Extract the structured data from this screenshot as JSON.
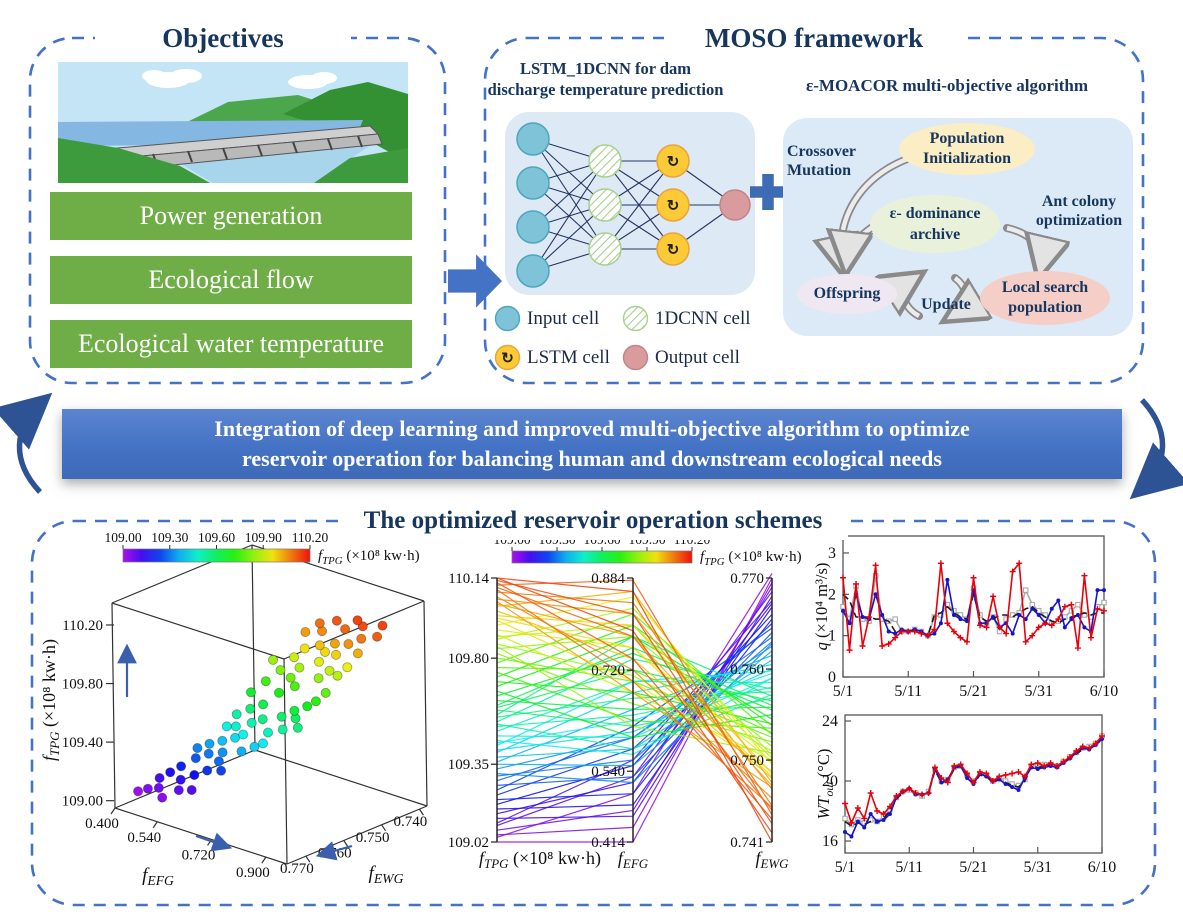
{
  "objectives_box": {
    "title": "Objectives",
    "items": [
      "Power generation",
      "Ecological flow",
      "Ecological water temperature"
    ]
  },
  "moso_box": {
    "title": "MOSO framework",
    "nn_header_line1": "LSTM_1DCNN for dam",
    "nn_header_line2": "discharge temperature prediction",
    "algo_header": "ε-MOACOR multi-objective algorithm",
    "nn_structure": [
      4,
      3,
      3,
      1
    ],
    "lstm_glyph": "↻",
    "legend": [
      "Input cell",
      "1DCNN cell",
      "LSTM cell",
      "Output cell"
    ],
    "flow": {
      "crossover_line1": "Crossover",
      "crossover_line2": "Mutation",
      "pop_line1": "Population",
      "pop_line2": "Initialization",
      "archive_line1": "ε- dominance",
      "archive_line2": "archive",
      "ant_line1": "Ant colony",
      "ant_line2": "optimization",
      "offspring": "Offspring",
      "update": "Update",
      "local_line1": "Local search",
      "local_line2": "population"
    }
  },
  "banner": {
    "line1": "Integration of deep learning and improved multi-objective algorithm to optimize",
    "line2": "reservoir operation for balancing human and downstream ecological needs"
  },
  "schemes_box": {
    "title": "The optimized reservoir operation schemes"
  },
  "colors": {
    "accent_blue": "#4472C4",
    "navy": "#17365D",
    "green_bar": "#6FAD47",
    "input_cell": "#7EC3D8",
    "cnn_hatch": "#A8D08D",
    "lstm_cell": "#FCC937",
    "output_cell": "#D99B9E",
    "red_series": "#E8000B",
    "blue_series": "#1414CC",
    "black_series": "#1a1a1a",
    "gray_series": "#A9A9A9"
  },
  "pareto_solutions": [
    [
      109.02,
      0.414,
      0.77
    ],
    [
      109.05,
      0.44,
      0.7695
    ],
    [
      109.07,
      0.47,
      0.769
    ],
    [
      109.04,
      0.5,
      0.7705
    ],
    [
      109.09,
      0.53,
      0.7685
    ],
    [
      109.12,
      0.46,
      0.768
    ],
    [
      109.1,
      0.56,
      0.7675
    ],
    [
      109.14,
      0.52,
      0.7672
    ],
    [
      109.16,
      0.48,
      0.7668
    ],
    [
      109.18,
      0.55,
      0.766
    ],
    [
      109.2,
      0.5,
      0.7655
    ],
    [
      109.22,
      0.58,
      0.765
    ],
    [
      109.24,
      0.62,
      0.7645
    ],
    [
      109.26,
      0.53,
      0.764
    ],
    [
      109.28,
      0.6,
      0.7635
    ],
    [
      109.3,
      0.56,
      0.763
    ],
    [
      109.31,
      0.52,
      0.7628
    ],
    [
      109.33,
      0.6,
      0.7625
    ],
    [
      109.35,
      0.55,
      0.762
    ],
    [
      109.36,
      0.65,
      0.7615
    ],
    [
      109.38,
      0.58,
      0.761
    ],
    [
      109.4,
      0.68,
      0.7605
    ],
    [
      109.41,
      0.61,
      0.76
    ],
    [
      109.43,
      0.7,
      0.7598
    ],
    [
      109.44,
      0.63,
      0.7595
    ],
    [
      109.45,
      0.57,
      0.759
    ],
    [
      109.47,
      0.6,
      0.759
    ],
    [
      109.49,
      0.7,
      0.7585
    ],
    [
      109.51,
      0.64,
      0.758
    ],
    [
      109.53,
      0.74,
      0.7578
    ],
    [
      109.55,
      0.67,
      0.7575
    ],
    [
      109.56,
      0.78,
      0.757
    ],
    [
      109.58,
      0.62,
      0.7568
    ],
    [
      109.59,
      0.72,
      0.7565
    ],
    [
      109.6,
      0.76,
      0.756
    ],
    [
      109.52,
      0.58,
      0.7572
    ],
    [
      109.62,
      0.65,
      0.7558
    ],
    [
      109.64,
      0.75,
      0.7555
    ],
    [
      109.66,
      0.6,
      0.755
    ],
    [
      109.68,
      0.78,
      0.7545
    ],
    [
      109.7,
      0.68,
      0.754
    ],
    [
      109.72,
      0.8,
      0.7538
    ],
    [
      109.74,
      0.63,
      0.7535
    ],
    [
      109.76,
      0.72,
      0.753
    ],
    [
      109.78,
      0.82,
      0.7528
    ],
    [
      109.8,
      0.7,
      0.7525
    ],
    [
      109.82,
      0.66,
      0.752
    ],
    [
      109.84,
      0.78,
      0.7515
    ],
    [
      109.86,
      0.71,
      0.751
    ],
    [
      109.88,
      0.83,
      0.7505
    ],
    [
      109.9,
      0.68,
      0.75
    ],
    [
      109.92,
      0.76,
      0.7498
    ],
    [
      109.94,
      0.85,
      0.7495
    ],
    [
      109.85,
      0.62,
      0.7508
    ],
    [
      109.89,
      0.8,
      0.7502
    ],
    [
      109.96,
      0.7,
      0.7488
    ],
    [
      109.98,
      0.8,
      0.7485
    ],
    [
      110.0,
      0.74,
      0.748
    ],
    [
      110.02,
      0.86,
      0.7475
    ],
    [
      110.04,
      0.68,
      0.747
    ],
    [
      110.05,
      0.82,
      0.7468
    ],
    [
      109.97,
      0.76,
      0.7482
    ],
    [
      110.03,
      0.78,
      0.7472
    ],
    [
      110.06,
      0.72,
      0.7458
    ],
    [
      110.08,
      0.84,
      0.745
    ],
    [
      110.1,
      0.78,
      0.7445
    ],
    [
      110.11,
      0.88,
      0.744
    ],
    [
      110.12,
      0.74,
      0.7435
    ],
    [
      110.13,
      0.82,
      0.743
    ],
    [
      110.14,
      0.79,
      0.742
    ],
    [
      110.09,
      0.7,
      0.7448
    ],
    [
      110.14,
      0.86,
      0.741
    ]
  ],
  "chart_data": [
    {
      "type": "scatter",
      "variant": "3d-pareto-front",
      "points_source": "pareto_solutions",
      "point_fields": [
        "f_TPG",
        "f_EFG",
        "f_EWG"
      ],
      "x_axis": {
        "label": {
          "i": "f",
          "sub": "EFG",
          "rest": ""
        },
        "ticks": [
          "0.400",
          "0.540",
          "0.720",
          "0.900"
        ],
        "range": [
          0.4,
          0.97
        ]
      },
      "y_axis": {
        "label": {
          "i": "f",
          "sub": "EWG",
          "rest": ""
        },
        "ticks": [
          "0.770",
          "0.760",
          "0.750",
          "0.740"
        ],
        "range": [
          0.775,
          0.738
        ]
      },
      "z_axis": {
        "label": {
          "i": "f",
          "sub": "TPG",
          "rest": " (×10⁸ kw·h)"
        },
        "ticks": [
          "109.00",
          "109.40",
          "109.80",
          "110.20"
        ],
        "range": [
          108.95,
          110.35
        ]
      },
      "colorbar": {
        "ticks": [
          "109.00",
          "109.30",
          "109.60",
          "109.90",
          "110.20"
        ],
        "label": {
          "i": "f",
          "sub": "TPG",
          "rest": " (×10⁸ kw·h)"
        },
        "range": [
          109.0,
          110.2
        ]
      },
      "grid": false,
      "legend_position": "none"
    },
    {
      "type": "line",
      "variant": "parallel-coordinates",
      "points_source": "pareto_solutions",
      "axes": [
        {
          "label": {
            "i": "f",
            "sub": "TPG",
            "rest": " (×10⁸ kw·h)"
          },
          "min": 109.02,
          "max": 110.14,
          "ticks": [
            "109.02",
            "109.35",
            "109.80",
            "110.14"
          ]
        },
        {
          "label": {
            "i": "f",
            "sub": "EFG",
            "rest": ""
          },
          "min": 0.414,
          "max": 0.884,
          "ticks": [
            "0.414",
            "0.540",
            "0.720",
            "0.884"
          ]
        },
        {
          "label": {
            "i": "f",
            "sub": "EWG",
            "rest": ""
          },
          "min": 0.741,
          "max": 0.77,
          "ticks": [
            "0.741",
            "0.750",
            "0.760",
            "0.770"
          ]
        }
      ],
      "colorbar": {
        "ticks": [
          "109.00",
          "109.30",
          "109.60",
          "109.90",
          "110.20"
        ],
        "label": {
          "i": "f",
          "sub": "TPG",
          "rest": " (×10⁸ kw·h)"
        },
        "range": [
          109.0,
          110.2
        ]
      }
    },
    {
      "type": "line",
      "variant": "timeseries",
      "ylabel": {
        "i": "q",
        "sub": "",
        "rest": " (×10⁴ m³/s)"
      },
      "ylim": [
        0,
        3.41
      ],
      "yticks": [
        "0",
        "1",
        "2",
        "3"
      ],
      "xtick_labels": [
        "5/1",
        "5/11",
        "5/21",
        "5/31",
        "6/10"
      ],
      "xtick_index": [
        0,
        10,
        20,
        30,
        40
      ],
      "series": [
        {
          "name": "red-line",
          "color": "#E8000B",
          "marker": "cross",
          "dash": false,
          "values": [
            2.4,
            0.65,
            2.25,
            0.75,
            1.45,
            2.7,
            0.75,
            0.8,
            0.95,
            1.1,
            1.1,
            1.1,
            1.05,
            1.0,
            1.15,
            2.75,
            1.3,
            1.1,
            0.95,
            0.85,
            2.4,
            1.25,
            1.2,
            1.95,
            1.2,
            1.05,
            2.55,
            2.75,
            0.85,
            1.0,
            1.2,
            1.3,
            1.25,
            1.4,
            1.7,
            1.75,
            0.7,
            2.45,
            0.95,
            1.65,
            1.6
          ]
        },
        {
          "name": "blue-line",
          "color": "#1414CC",
          "marker": "dot",
          "dash": false,
          "values": [
            1.6,
            1.3,
            2.0,
            1.45,
            1.4,
            2.0,
            1.5,
            1.1,
            1.05,
            1.15,
            1.1,
            1.15,
            1.1,
            1.0,
            1.05,
            1.3,
            2.35,
            1.5,
            1.4,
            1.35,
            2.1,
            1.3,
            1.3,
            1.45,
            1.2,
            1.3,
            1.05,
            1.5,
            1.4,
            1.65,
            1.5,
            1.3,
            1.65,
            1.85,
            1.2,
            1.4,
            1.5,
            1.2,
            1.1,
            2.1,
            2.1
          ]
        },
        {
          "name": "black-dashed-line",
          "color": "#1a1a1a",
          "marker": "none",
          "dash": true,
          "values": [
            2.0,
            1.85,
            1.45,
            1.45,
            1.45,
            1.4,
            1.4,
            1.35,
            1.1,
            1.1,
            1.1,
            1.15,
            1.1,
            1.0,
            1.5,
            1.55,
            1.7,
            1.55,
            1.45,
            1.4,
            2.0,
            1.45,
            1.35,
            1.4,
            1.5,
            1.5,
            1.45,
            1.55,
            1.65,
            1.7,
            1.55,
            1.45,
            1.35,
            1.3,
            1.4,
            1.45,
            1.5,
            1.55,
            1.5,
            1.55,
            1.55
          ]
        },
        {
          "name": "gray-square-line",
          "color": "#A9A9A9",
          "marker": "square",
          "dash": false,
          "values": [
            1.7,
            1.4,
            2.2,
            1.4,
            1.35,
            2.45,
            1.4,
            1.35,
            1.4,
            1.1,
            1.1,
            1.15,
            1.1,
            1.0,
            1.45,
            1.5,
            1.75,
            1.6,
            1.5,
            1.4,
            2.15,
            1.5,
            1.3,
            1.45,
            1.1,
            1.4,
            1.5,
            1.55,
            2.1,
            1.75,
            1.6,
            1.5,
            1.3,
            1.35,
            1.45,
            1.6,
            1.75,
            1.5,
            1.45,
            1.7,
            1.8
          ]
        }
      ]
    },
    {
      "type": "line",
      "variant": "timeseries",
      "ylabel": {
        "i": "WT",
        "sub": "out",
        "rest": " (°C)"
      },
      "ylim": [
        15.2,
        24.4
      ],
      "yticks": [
        "16",
        "20",
        "24"
      ],
      "xtick_labels": [
        "5/1",
        "5/11",
        "5/21",
        "5/31",
        "6/10"
      ],
      "xtick_index": [
        0,
        10,
        20,
        30,
        40
      ],
      "series": [
        {
          "name": "red-line",
          "color": "#E8000B",
          "marker": "cross",
          "dash": false,
          "values": [
            18.5,
            17.2,
            18.2,
            17.5,
            19.2,
            18.0,
            17.8,
            18.3,
            19.0,
            19.3,
            19.5,
            19.2,
            19.1,
            19.2,
            20.9,
            20.2,
            19.9,
            21.0,
            21.1,
            20.5,
            19.9,
            20.6,
            20.5,
            20.0,
            20.3,
            20.4,
            20.5,
            20.6,
            20.3,
            21.1,
            21.2,
            21.0,
            21.2,
            21.0,
            21.3,
            21.6,
            22.0,
            22.3,
            22.2,
            22.5,
            23.0
          ]
        },
        {
          "name": "blue-line",
          "color": "#1414CC",
          "marker": "dot",
          "dash": false,
          "values": [
            16.6,
            16.3,
            17.3,
            16.9,
            17.8,
            17.3,
            17.4,
            17.8,
            18.9,
            19.3,
            19.5,
            19.1,
            19.1,
            19.2,
            20.8,
            19.9,
            20.1,
            20.9,
            21.0,
            20.2,
            19.8,
            20.5,
            20.3,
            20.0,
            20.1,
            19.8,
            19.6,
            19.4,
            20.2,
            20.9,
            20.8,
            20.9,
            21.0,
            20.9,
            21.2,
            21.5,
            21.9,
            22.2,
            22.1,
            22.4,
            22.8
          ]
        },
        {
          "name": "black-dashed-line",
          "color": "#1a1a1a",
          "marker": "none",
          "dash": true,
          "values": [
            17.3,
            17.0,
            17.2,
            17.1,
            17.3,
            17.2,
            17.5,
            18.0,
            18.8,
            19.2,
            19.5,
            19.1,
            19.1,
            19.2,
            20.7,
            19.9,
            20.0,
            20.8,
            21.0,
            20.3,
            19.8,
            20.4,
            20.3,
            19.9,
            20.1,
            19.9,
            19.7,
            19.6,
            20.0,
            21.0,
            20.9,
            21.0,
            21.1,
            21.0,
            21.2,
            21.5,
            21.8,
            22.1,
            22.2,
            22.4,
            22.8
          ]
        },
        {
          "name": "gray-square-line",
          "color": "#A9A9A9",
          "marker": "square",
          "dash": false,
          "values": [
            17.5,
            17.1,
            17.4,
            17.2,
            17.4,
            17.3,
            17.6,
            18.1,
            18.9,
            19.3,
            19.4,
            19.2,
            19.0,
            19.3,
            20.8,
            20.0,
            20.1,
            20.9,
            21.0,
            20.4,
            20.0,
            20.5,
            20.4,
            20.0,
            20.2,
            20.0,
            19.8,
            19.7,
            20.1,
            21.0,
            21.0,
            21.1,
            21.1,
            21.0,
            21.3,
            21.6,
            21.9,
            22.2,
            22.3,
            22.5,
            23.0
          ]
        }
      ]
    }
  ]
}
